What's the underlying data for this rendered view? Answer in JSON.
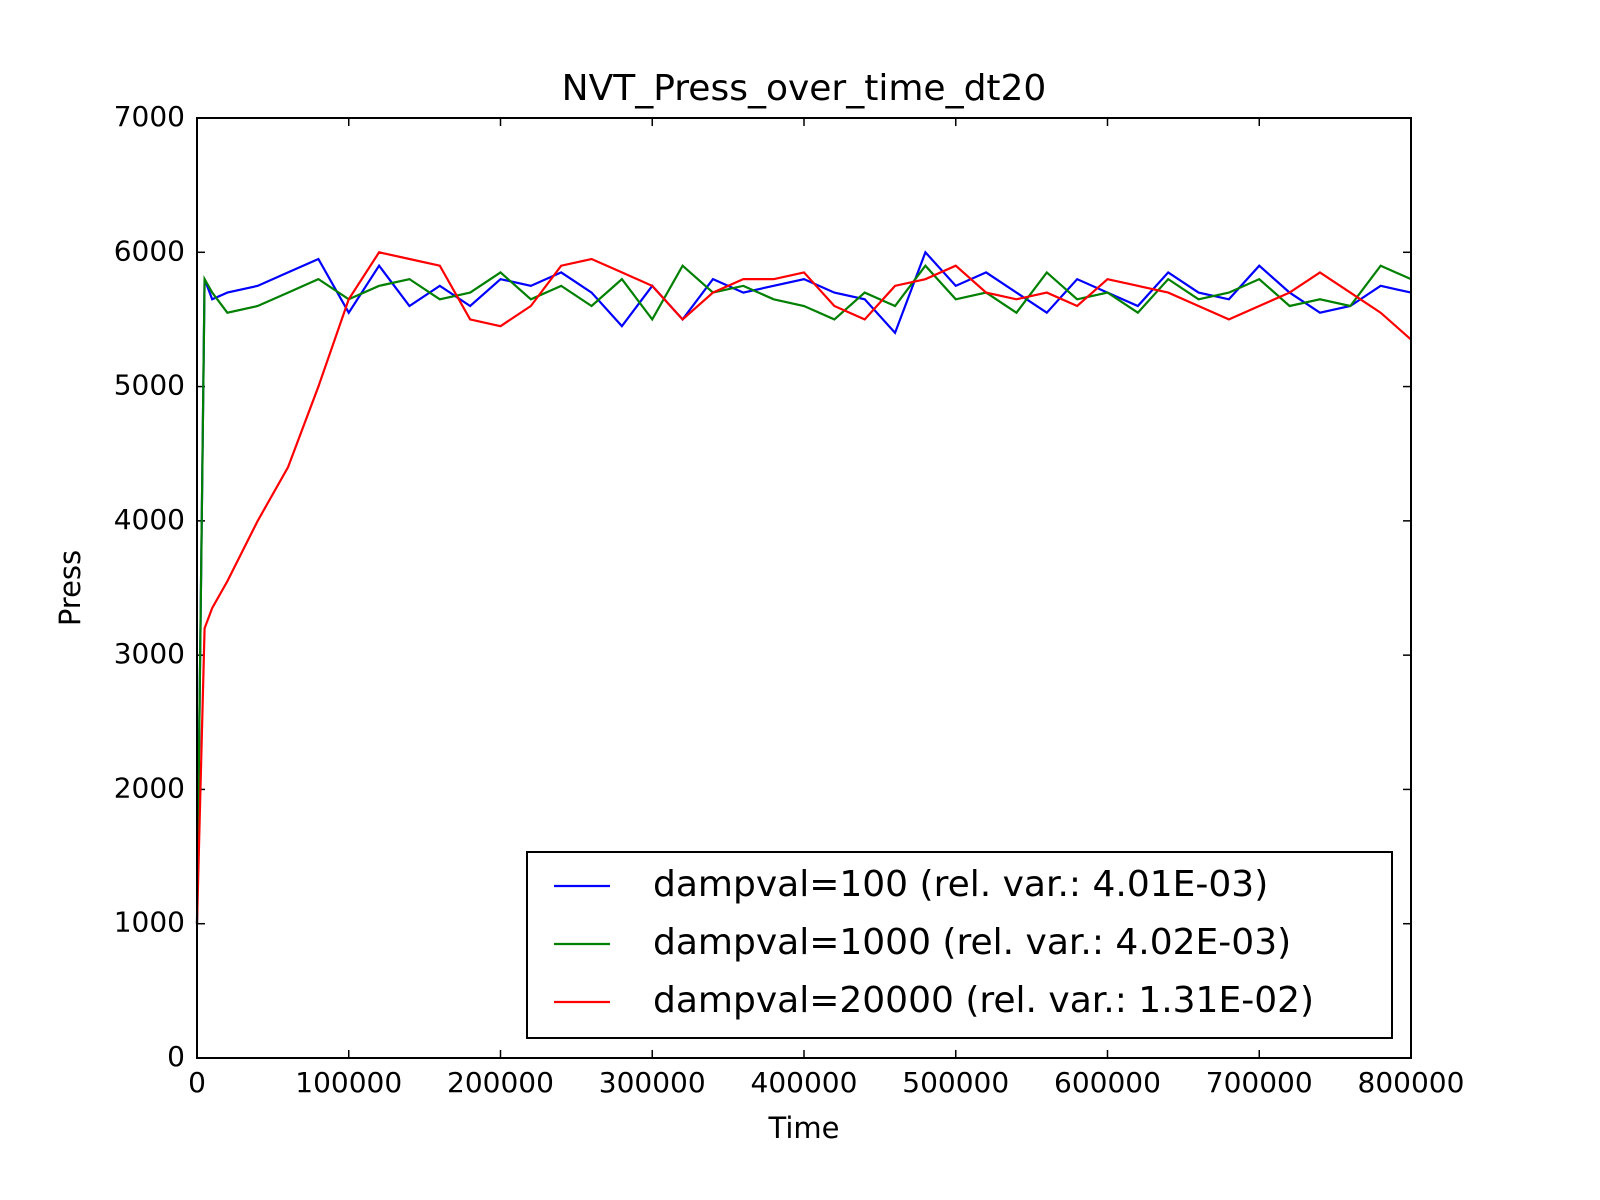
{
  "chart_data": {
    "type": "line",
    "title": "NVT_Press_over_time_dt20",
    "x_label": "Time",
    "y_label": "Press",
    "x": [
      0,
      5000,
      10000,
      20000,
      40000,
      60000,
      80000,
      100000,
      120000,
      140000,
      160000,
      180000,
      200000,
      220000,
      240000,
      260000,
      280000,
      300000,
      320000,
      340000,
      360000,
      380000,
      400000,
      420000,
      440000,
      460000,
      480000,
      500000,
      520000,
      540000,
      560000,
      580000,
      600000,
      620000,
      640000,
      660000,
      680000,
      700000,
      720000,
      740000,
      760000,
      780000,
      800000
    ],
    "series": [
      {
        "name": "dampval=100 (rel. var.: 4.01E-03)",
        "color": "#0000ff",
        "values": [
          1000,
          5800,
          5650,
          5700,
          5750,
          5850,
          5950,
          5550,
          5900,
          5600,
          5750,
          5600,
          5800,
          5750,
          5850,
          5700,
          5450,
          5750,
          5500,
          5800,
          5700,
          5750,
          5800,
          5700,
          5650,
          5400,
          6000,
          5750,
          5850,
          5700,
          5550,
          5800,
          5700,
          5600,
          5850,
          5700,
          5650,
          5900,
          5700,
          5550,
          5600,
          5750,
          5700
        ]
      },
      {
        "name": "dampval=1000 (rel. var.: 4.02E-03)",
        "color": "#008000",
        "values": [
          1000,
          5800,
          5700,
          5550,
          5600,
          5700,
          5800,
          5650,
          5750,
          5800,
          5650,
          5700,
          5850,
          5650,
          5750,
          5600,
          5800,
          5500,
          5900,
          5700,
          5750,
          5650,
          5600,
          5500,
          5700,
          5600,
          5900,
          5650,
          5700,
          5550,
          5850,
          5650,
          5700,
          5550,
          5800,
          5650,
          5700,
          5800,
          5600,
          5650,
          5600,
          5900,
          5800
        ]
      },
      {
        "name": "dampval=20000 (rel. var.: 1.31E-02)",
        "color": "#ff0000",
        "values": [
          1000,
          3200,
          3350,
          3550,
          4000,
          4400,
          5000,
          5650,
          6000,
          5950,
          5900,
          5500,
          5450,
          5600,
          5900,
          5950,
          5850,
          5750,
          5500,
          5700,
          5800,
          5800,
          5850,
          5600,
          5500,
          5750,
          5800,
          5900,
          5700,
          5650,
          5700,
          5600,
          5800,
          5750,
          5700,
          5600,
          5500,
          5600,
          5700,
          5850,
          5700,
          5550,
          5350
        ]
      }
    ],
    "xlim": [
      0,
      800000
    ],
    "ylim": [
      0,
      7000
    ],
    "xticks": [
      0,
      100000,
      200000,
      300000,
      400000,
      500000,
      600000,
      700000,
      800000
    ],
    "yticks": [
      0,
      1000,
      2000,
      3000,
      4000,
      5000,
      6000,
      7000
    ],
    "grid": false,
    "legend": "lower right"
  }
}
